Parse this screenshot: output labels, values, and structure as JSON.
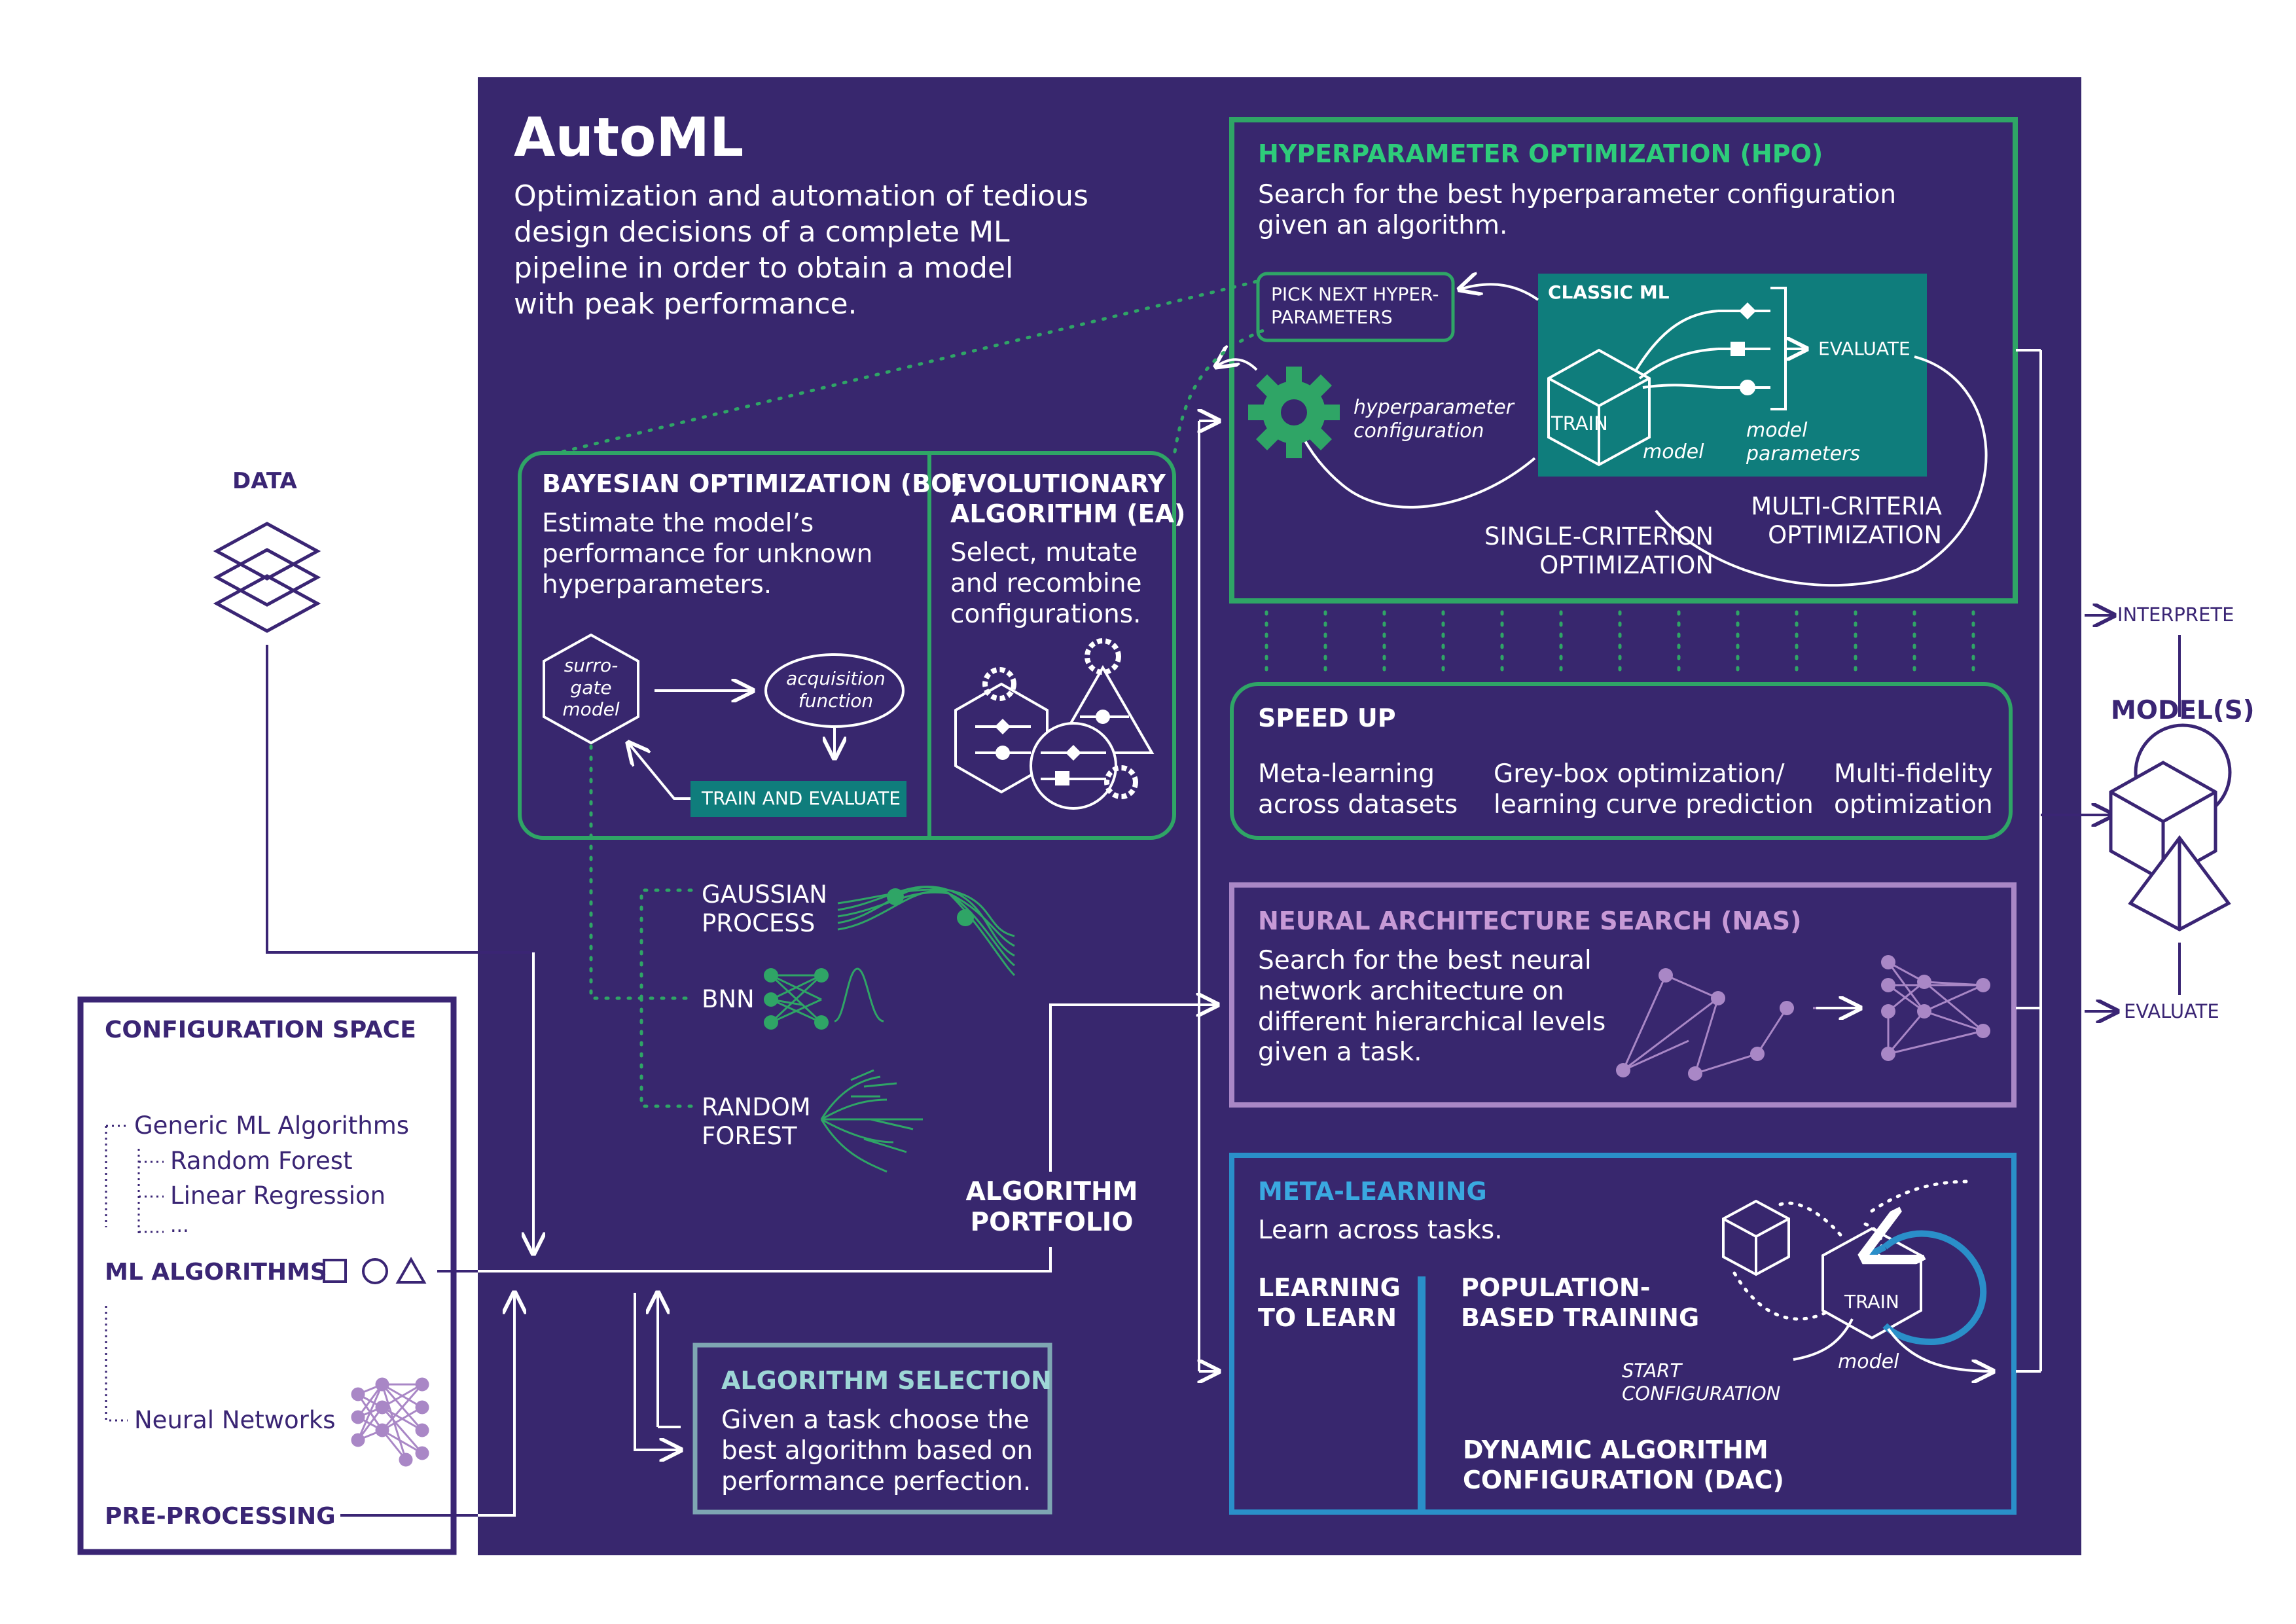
{
  "automl": {
    "title": "AutoML",
    "description": "Optimization and automation of tedious\ndesign decisions of a complete ML\npipeline in order to obtain a model\nwith peak performance."
  },
  "data_label": "DATA",
  "config_space": {
    "title": "CONFIGURATION SPACE",
    "generic": "Generic ML Algorithms",
    "rf": "Random Forest",
    "lr": "Linear Regression",
    "more": "...",
    "ml_algorithms": "ML ALGORITHMS",
    "nn": "Neural Networks",
    "preprocessing": "PRE-PROCESSING"
  },
  "hpo": {
    "title": "HYPERPARAMETER OPTIMIZATION (HPO)",
    "desc": "Search for the best hyperparameter configuration\ngiven an algorithm.",
    "pick_next": "PICK NEXT HYPER-\nPARAMETERS",
    "classic_ml": "CLASSIC ML",
    "evaluate": "EVALUATE",
    "hyper_config": "hyperparameter\nconfiguration",
    "train": "TRAIN",
    "model": "model",
    "model_params": "model\nparameters",
    "multi": "MULTI-CRITERIA\nOPTIMIZATION",
    "single": "SINGLE-CRITERION\nOPTIMIZATION"
  },
  "bo": {
    "title": "BAYESIAN OPTIMIZATION (BO)",
    "desc": "Estimate the model’s\nperformance for unknown\nhyperparameters.",
    "surrogate": "surro-\ngate\nmodel",
    "acq": "acquisition\nfunction",
    "train_eval": "TRAIN AND EVALUATE"
  },
  "ea": {
    "title": "EVOLUTIONARY\nALGORITHM (EA)",
    "desc": "Select, mutate\nand recombine\nconfigurations."
  },
  "speedup": {
    "title": "SPEED UP",
    "meta": "Meta-learning\nacross datasets",
    "grey": "Grey-box optimization/\nlearning curve prediction",
    "multi": "Multi-fidelity\noptimization"
  },
  "surrogates": {
    "gp": "GAUSSIAN\nPROCESS",
    "bnn": "BNN",
    "rf": "RANDOM\nFOREST"
  },
  "nas": {
    "title": "NEURAL ARCHITECTURE SEARCH (NAS)",
    "desc": "Search for the best neural\nnetwork architecture on\ndifferent hierarchical levels\ngiven a task."
  },
  "portfolio": "ALGORITHM\nPORTFOLIO",
  "meta": {
    "title": "META-LEARNING",
    "desc": "Learn across tasks.",
    "l2l": "LEARNING\nTO LEARN",
    "pbt": "POPULATION-\nBASED TRAINING",
    "train": "TRAIN",
    "model": "model",
    "start": "START\nCONFIGURATION",
    "dac": "DYNAMIC ALGORITHM\nCONFIGURATION (DAC)"
  },
  "algsel": {
    "title": "ALGORITHM SELECTION",
    "desc": "Given a task choose the\nbest algorithm based on\nperformance perfection."
  },
  "right": {
    "interprete": "INTERPRETE",
    "models": "MODEL(S)",
    "evaluate": "EVALUATE"
  },
  "colors": {
    "background_panel": "#38276e",
    "green": "#2fa566",
    "teal_box": "#0f7d7c",
    "purple": "#a987c6",
    "blue": "#2a8fc9",
    "slate": "#7ea6b3",
    "dark_text": "#3a2574"
  },
  "icons": [
    "layers-icon",
    "square-icon",
    "circle-icon",
    "triangle-icon",
    "gear-icon",
    "cube-icon",
    "neural-network-icon",
    "tree-icon",
    "pyramid-icon"
  ]
}
